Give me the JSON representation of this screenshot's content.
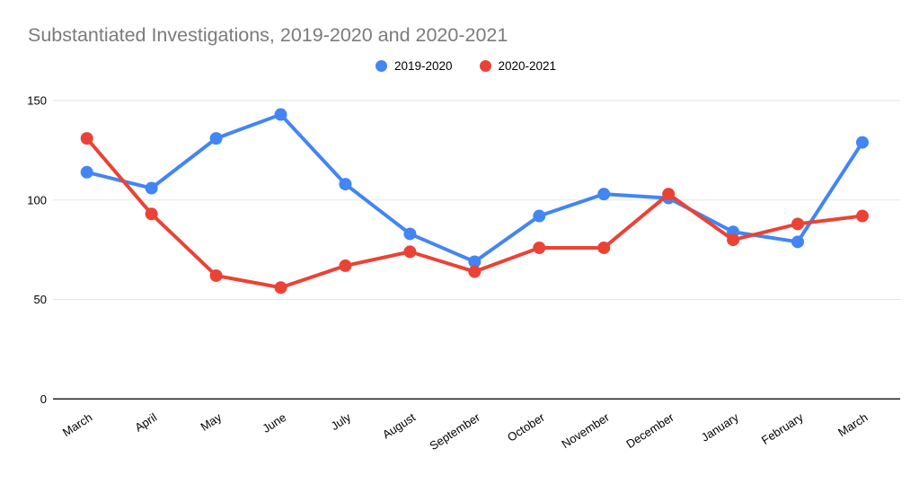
{
  "chart_data": {
    "type": "line",
    "title": "Substantiated Investigations, 2019-2020 and 2020-2021",
    "categories": [
      "March",
      "April",
      "May",
      "June",
      "July",
      "August",
      "September",
      "October",
      "November",
      "December",
      "January",
      "February",
      "March"
    ],
    "series": [
      {
        "name": "2019-2020",
        "color": "#4285F4",
        "values": [
          114,
          106,
          131,
          143,
          108,
          83,
          69,
          92,
          103,
          101,
          84,
          79,
          129
        ]
      },
      {
        "name": "2020-2021",
        "color": "#EA4335",
        "values": [
          131,
          93,
          62,
          56,
          67,
          74,
          64,
          76,
          76,
          103,
          80,
          88,
          92
        ]
      }
    ],
    "xlabel": "",
    "ylabel": "",
    "y_ticks": [
      0,
      50,
      100,
      150
    ],
    "ylim": [
      0,
      157
    ],
    "grid": true,
    "legend_position": "top-center",
    "x_label_rotation_deg": -33,
    "colors": {
      "grid": "#e6e6e6",
      "axis": "#212121",
      "title": "#7b7b7b",
      "tick_label": "#000000",
      "background": "#ffffff"
    }
  }
}
